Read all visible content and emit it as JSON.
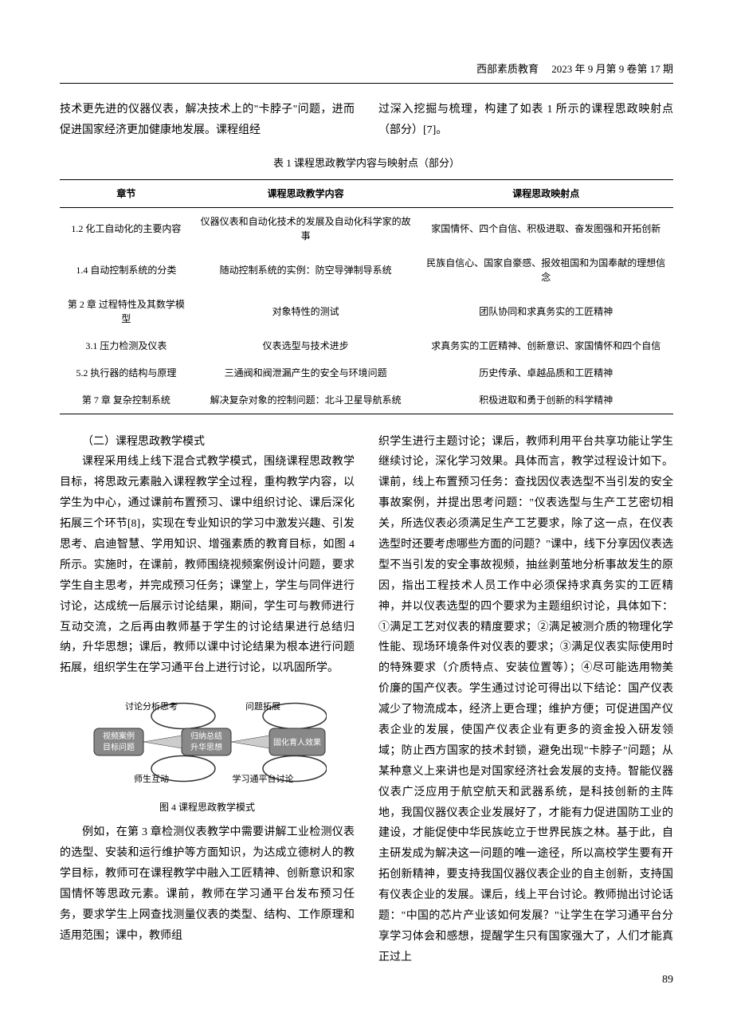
{
  "header": {
    "journal": "西部素质教育",
    "date_issue": "2023 年 9 月第 9 卷第 17 期"
  },
  "top_left": "技术更先进的仪器仪表，解决技术上的\"卡脖子\"问题，进而促进国家经济更加健康地发展。课程组经",
  "top_right": "过深入挖掘与梳理，构建了如表 1 所示的课程思政映射点（部分）[7]。",
  "table": {
    "title": "表 1  课程思政教学内容与映射点（部分）",
    "columns": [
      "章节",
      "课程思政教学内容",
      "课程思政映射点"
    ],
    "rows": [
      [
        "1.2 化工自动化的主要内容",
        "仪器仪表和自动化技术的发展及自动化科学家的故事",
        "家国情怀、四个自信、积极进取、奋发图强和开拓创新"
      ],
      [
        "1.4 自动控制系统的分类",
        "随动控制系统的实例：防空导弹制导系统",
        "民族自信心、国家自豪感、报效祖国和为国奉献的理想信念"
      ],
      [
        "第 2 章 过程特性及其数学模型",
        "对象特性的测试",
        "团队协同和求真务实的工匠精神"
      ],
      [
        "3.1 压力检测及仪表",
        "仪表选型与技术进步",
        "求真务实的工匠精神、创新意识、家国情怀和四个自信"
      ],
      [
        "5.2 执行器的结构与原理",
        "三通阀和阀泄漏产生的安全与环境问题",
        "历史传承、卓越品质和工匠精神"
      ],
      [
        "第 7 章 复杂控制系统",
        "解决复杂对象的控制问题：北斗卫星导航系统",
        "积极进取和勇于创新的科学精神"
      ]
    ]
  },
  "left_col": {
    "heading": "（二）课程思政教学模式",
    "para1": "课程采用线上线下混合式教学模式，围绕课程思政教学目标，将思政元素融入课程教学全过程，重构教学内容，以学生为中心，通过课前布置预习、课中组织讨论、课后深化拓展三个环节[8]，实现在专业知识的学习中激发兴趣、引发思考、启迪智慧、学用知识、增强素质的教育目标，如图 4 所示。实施时，在课前，教师围绕视频案例设计问题，要求学生自主思考，并完成预习任务；课堂上，学生与同伴进行讨论，达成统一后展示讨论结果，期间，学生可与教师进行互动交流，之后再由教师基于学生的讨论结果进行总结归纳，升华思想；课后，教师以课中讨论结果为根本进行问题拓展，组织学生在学习通平台上进行讨论，以巩固所学。",
    "figure": {
      "caption": "图 4  课程思政教学模式",
      "labels": {
        "top_left": "讨论分析思考",
        "top_right": "问题拓展",
        "box1_l1": "视频案例",
        "box1_l2": "目标问题",
        "box2_l1": "归纳总结",
        "box2_l2": "升华思想",
        "box3": "固化育人效果",
        "bottom_left": "师生互动",
        "bottom_right": "学习通平台讨论"
      }
    },
    "para2": "例如，在第 3 章检测仪表教学中需要讲解工业检测仪表的选型、安装和运行维护等方面知识，为达成立德树人的教学目标，教师可在课程教学中融入工匠精神、创新意识和家国情怀等思政元素。课前，教师在学习通平台发布预习任务，要求学生上网查找测量仪表的类型、结构、工作原理和适用范围；课中，教师组"
  },
  "right_col": {
    "para": "织学生进行主题讨论；课后，教师利用平台共享功能让学生继续讨论，深化学习效果。具体而言，教学过程设计如下。课前，线上布置预习任务：查找因仪表选型不当引发的安全事故案例，并提出思考问题：\"仪表选型与生产工艺密切相关，所选仪表必须满足生产工艺要求，除了这一点，在仪表选型时还要考虑哪些方面的问题？\"课中，线下分享因仪表选型不当引发的安全事故视频，抽丝剥茧地分析事故发生的原因，指出工程技术人员工作中必须保持求真务实的工匠精神，并以仪表选型的四个要求为主题组织讨论，具体如下：①满足工艺对仪表的精度要求；②满足被测介质的物理化学性能、现场环境条件对仪表的要求；③满足仪表实际使用时的特殊要求（介质特点、安装位置等）；④尽可能选用物美价廉的国产仪表。学生通过讨论可得出以下结论：国产仪表减少了物流成本，经济上更合理；维护方便；可促进国产仪表企业的发展，使国产仪表企业有更多的资金投入研发领域；防止西方国家的技术封锁，避免出现\"卡脖子\"问题；从某种意义上来讲也是对国家经济社会发展的支持。智能仪器仪表广泛应用于航空航天和武器系统，是科技创新的主阵地，我国仪器仪表企业发展好了，才能有力促进国防工业的建设，才能促使中华民族屹立于世界民族之林。基于此，自主研发成为解决这一问题的唯一途径，所以高校学生要有开拓创新精神，要支持我国仪器仪表企业的自主创新，支持国有仪表企业的发展。课后，线上平台讨论。教师抛出讨论话题：\"中国的芯片产业该如何发展？\"让学生在学习通平台分享学习体会和感想，提醒学生只有国家强大了，人们才能真正过上"
  },
  "page_number": "89"
}
